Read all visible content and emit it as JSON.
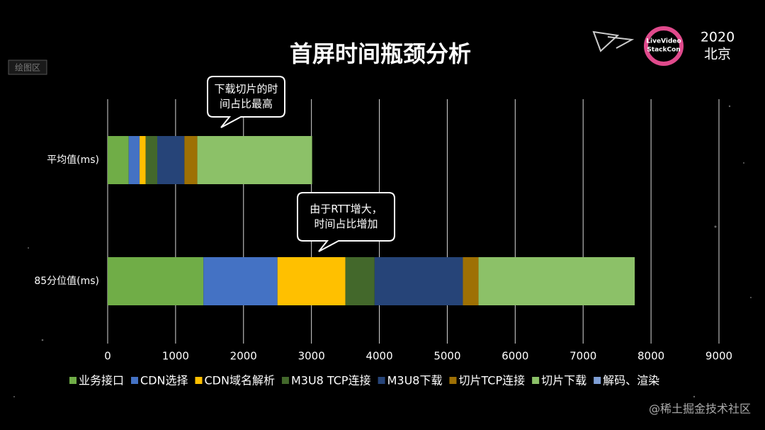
{
  "chart_data": {
    "type": "stacked-barh",
    "title": "首屏时间瓶颈分析",
    "categories": [
      "平均值(ms)",
      "85分位值(ms)"
    ],
    "series": [
      {
        "name": "业务接口",
        "color": "#70ad47",
        "values": [
          310,
          1410
        ]
      },
      {
        "name": "CDN选择",
        "color": "#4472c4",
        "values": [
          160,
          1090
        ]
      },
      {
        "name": "CDN域名解析",
        "color": "#ffc000",
        "values": [
          90,
          1000
        ]
      },
      {
        "name": "M3U8 TCP连接",
        "color": "#43682b",
        "values": [
          170,
          430
        ]
      },
      {
        "name": "M3U8下载",
        "color": "#264478",
        "values": [
          400,
          1300
        ]
      },
      {
        "name": "切片TCP连接",
        "color": "#9e7004",
        "values": [
          190,
          230
        ]
      },
      {
        "name": "切片下载",
        "color": "#8cc168",
        "values": [
          1690,
          2300
        ]
      },
      {
        "name": "解码、渲染",
        "color": "#7f9fd6",
        "values": [
          0,
          0
        ]
      }
    ],
    "xlim": [
      0,
      9000
    ],
    "xticks": [
      0,
      1000,
      2000,
      3000,
      4000,
      5000,
      6000,
      7000,
      8000,
      9000
    ],
    "grid": true,
    "legend": "bottom",
    "annotations": [
      [
        "下载切片的时",
        "间占比最高"
      ],
      [
        "由于RTT增大，",
        "时间占比增加"
      ]
    ]
  },
  "slide": {
    "year": "2020",
    "city": "北京",
    "logo": [
      "LiveVideo",
      "StackCon"
    ],
    "plot_area_label": "绘图区",
    "watermark": "@稀土掘金技术社区"
  }
}
